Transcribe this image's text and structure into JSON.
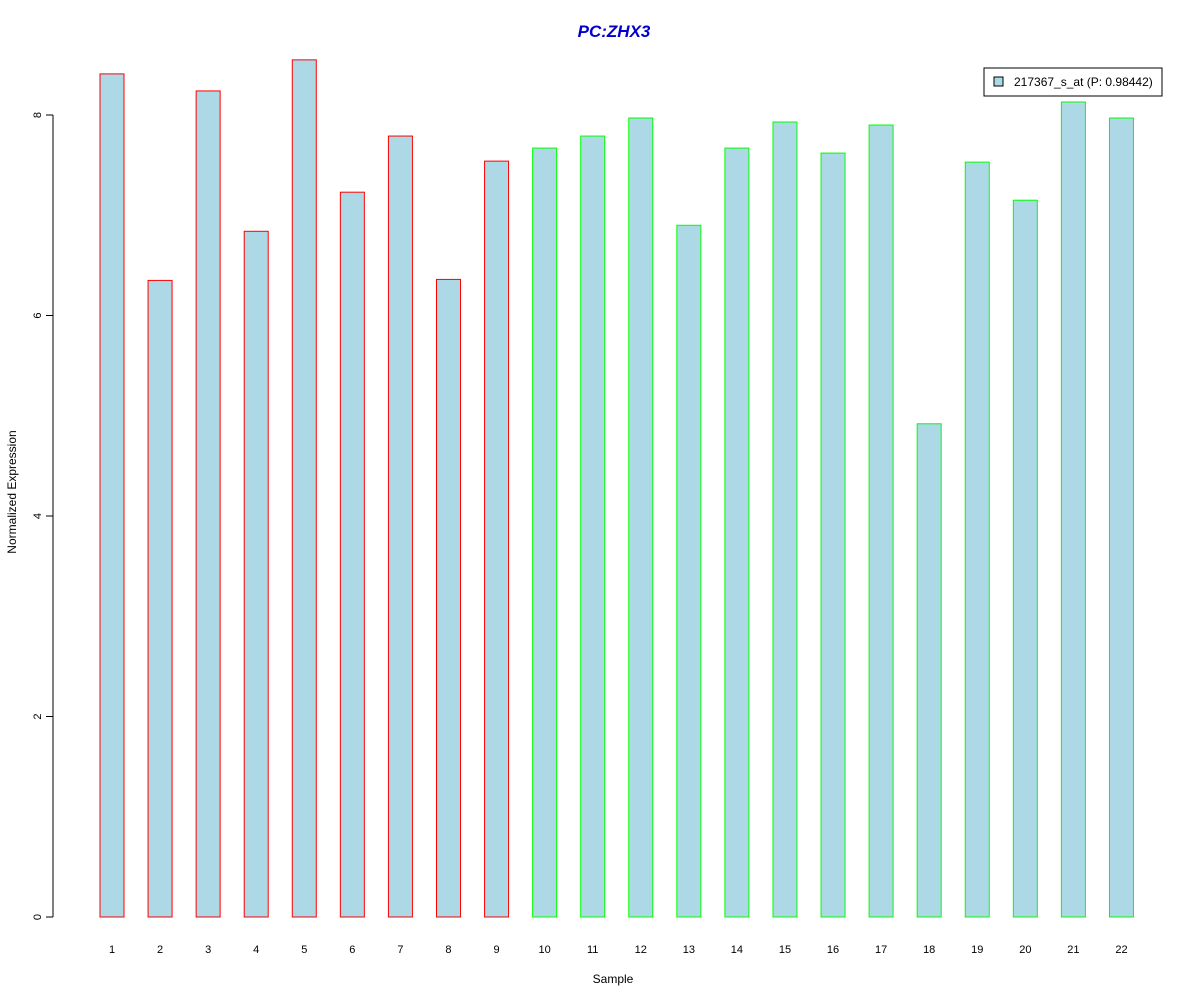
{
  "chart_data": {
    "type": "bar",
    "title": "PC:ZHX3",
    "title_color": "#0000CD",
    "xlabel": "Sample",
    "ylabel": "Normalized Expression",
    "categories": [
      "1",
      "2",
      "3",
      "4",
      "5",
      "6",
      "7",
      "8",
      "9",
      "10",
      "11",
      "12",
      "13",
      "14",
      "15",
      "16",
      "17",
      "18",
      "19",
      "20",
      "21",
      "22"
    ],
    "values": [
      8.41,
      6.35,
      8.24,
      6.84,
      8.55,
      7.23,
      7.79,
      6.36,
      7.54,
      7.67,
      7.79,
      7.97,
      6.9,
      7.67,
      7.93,
      7.62,
      7.9,
      4.92,
      7.53,
      7.15,
      8.13,
      7.97
    ],
    "bar_fill": "#ADD8E6",
    "group_border_colors": [
      "#FF0000",
      "#FF0000",
      "#FF0000",
      "#FF0000",
      "#FF0000",
      "#FF0000",
      "#FF0000",
      "#FF0000",
      "#FF0000",
      "#00FF00",
      "#00FF00",
      "#00FF00",
      "#00FF00",
      "#00FF00",
      "#00FF00",
      "#00FF00",
      "#00FF00",
      "#00FF00",
      "#00FF00",
      "#00FF00",
      "#00FF00",
      "#00FF00"
    ],
    "yticks": [
      0,
      2,
      4,
      6,
      8
    ],
    "ylim": [
      0,
      8.55
    ],
    "grid": false,
    "legend": {
      "label": "217367_s_at (P: 0.98442)",
      "swatch_fill": "#ADD8E6",
      "placement": "top-right"
    }
  }
}
